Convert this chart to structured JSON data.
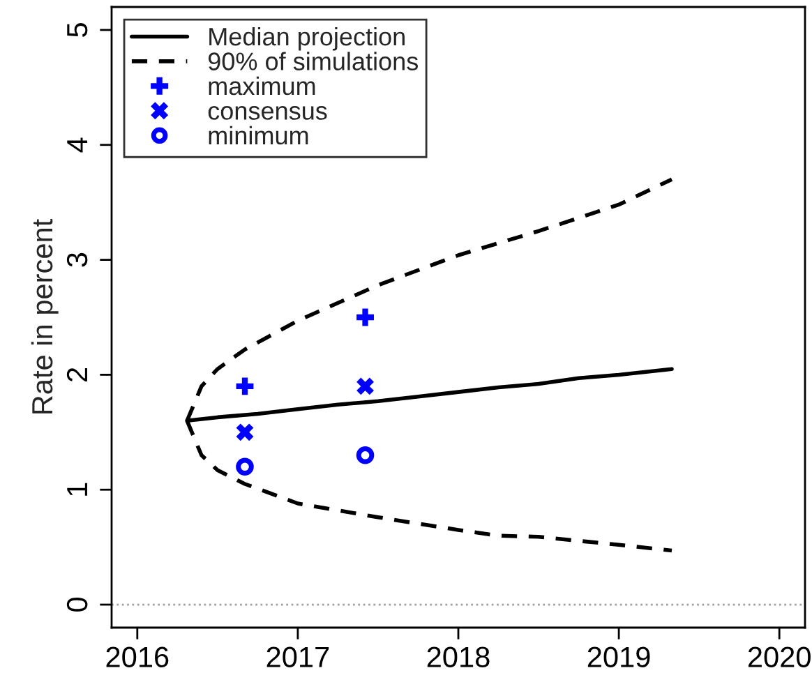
{
  "chart_data": {
    "type": "line",
    "ylabel": "Rate in percent",
    "xlim": [
      2015.84,
      2020.16
    ],
    "xticks": [
      2016,
      2017,
      2018,
      2019,
      2020
    ],
    "ylim": [
      -0.2,
      5.2
    ],
    "yticks": [
      0,
      1,
      2,
      3,
      4,
      5
    ],
    "grid": false,
    "legend": "top left",
    "ref_lines": [
      {
        "axis": "y",
        "value": 0,
        "color": "#a0a0a0",
        "line_style": "dotted"
      }
    ],
    "series": [
      {
        "name": "Median projection",
        "color": "#000000",
        "line_style": "solid",
        "x": [
          2016.31,
          2016.5,
          2016.75,
          2017.0,
          2017.25,
          2017.5,
          2017.75,
          2018.0,
          2018.25,
          2018.5,
          2018.75,
          2019.0,
          2019.33
        ],
        "values": [
          1.6,
          1.63,
          1.66,
          1.7,
          1.74,
          1.77,
          1.81,
          1.85,
          1.89,
          1.92,
          1.97,
          2.0,
          2.05
        ]
      },
      {
        "name": "90% of simulations",
        "color": "#000000",
        "line_style": "dashed",
        "x": [
          2016.31,
          2016.4,
          2016.5,
          2016.67,
          2017.0,
          2017.5,
          2018.0,
          2018.5,
          2019.0,
          2019.33
        ],
        "values": [
          1.6,
          1.9,
          2.05,
          2.22,
          2.47,
          2.78,
          3.04,
          3.25,
          3.48,
          3.7
        ]
      },
      {
        "color": "#000000",
        "line_style": "dashed",
        "x": [
          2016.31,
          2016.4,
          2016.5,
          2016.67,
          2017.0,
          2017.5,
          2018.0,
          2018.25,
          2018.5,
          2019.0,
          2019.33
        ],
        "values": [
          1.6,
          1.3,
          1.17,
          1.05,
          0.88,
          0.76,
          0.65,
          0.6,
          0.59,
          0.52,
          0.47
        ]
      },
      {
        "name": "maximum",
        "type": "scatter",
        "marker": "plus",
        "color": "#0000ff",
        "x": [
          2016.67,
          2017.42
        ],
        "values": [
          1.9,
          2.5
        ]
      },
      {
        "name": "consensus",
        "type": "scatter",
        "marker": "cross",
        "color": "#0000ff",
        "x": [
          2016.67,
          2017.42
        ],
        "values": [
          1.5,
          1.9
        ]
      },
      {
        "name": "minimum",
        "type": "scatter",
        "marker": "circle",
        "color": "#0000ff",
        "x": [
          2016.67,
          2017.42
        ],
        "values": [
          1.2,
          1.3
        ]
      }
    ]
  }
}
